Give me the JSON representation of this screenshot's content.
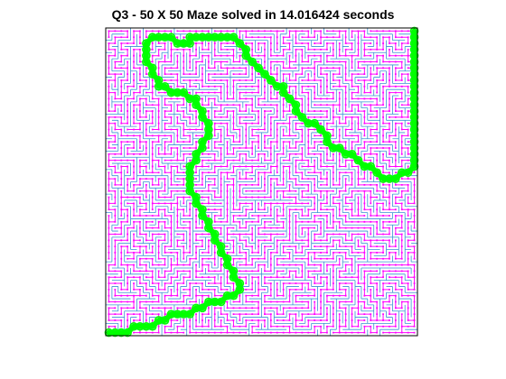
{
  "title": "Q3 - 50 X 50 Maze solved in 14.016424 seconds",
  "maze": {
    "rows": 50,
    "cols": 50,
    "wall_color": "#3b8fd4",
    "path_color": "#ff00ff",
    "node_color": "#ff00ff",
    "solution_color": "#00ff00",
    "frame_color": "#000000",
    "start_cell": [
      0,
      0
    ],
    "goal_cell": [
      49,
      49
    ]
  },
  "solution_path": [
    [
      0,
      0
    ],
    [
      1,
      0
    ],
    [
      2,
      0
    ],
    [
      3,
      0
    ],
    [
      4,
      1
    ],
    [
      5,
      1
    ],
    [
      6,
      1
    ],
    [
      7,
      1
    ],
    [
      8,
      2
    ],
    [
      9,
      2
    ],
    [
      10,
      3
    ],
    [
      11,
      3
    ],
    [
      12,
      3
    ],
    [
      13,
      3
    ],
    [
      14,
      4
    ],
    [
      15,
      4
    ],
    [
      16,
      5
    ],
    [
      17,
      5
    ],
    [
      18,
      5
    ],
    [
      19,
      6
    ],
    [
      20,
      6
    ],
    [
      21,
      7
    ],
    [
      21,
      8
    ],
    [
      20,
      9
    ],
    [
      20,
      10
    ],
    [
      19,
      11
    ],
    [
      19,
      12
    ],
    [
      18,
      13
    ],
    [
      18,
      14
    ],
    [
      17,
      15
    ],
    [
      17,
      16
    ],
    [
      16,
      17
    ],
    [
      16,
      18
    ],
    [
      15,
      19
    ],
    [
      15,
      20
    ],
    [
      14,
      21
    ],
    [
      14,
      22
    ],
    [
      13,
      23
    ],
    [
      13,
      24
    ],
    [
      13,
      25
    ],
    [
      13,
      26
    ],
    [
      13,
      27
    ],
    [
      14,
      28
    ],
    [
      14,
      29
    ],
    [
      15,
      30
    ],
    [
      15,
      31
    ],
    [
      16,
      32
    ],
    [
      16,
      33
    ],
    [
      16,
      34
    ],
    [
      15,
      35
    ],
    [
      15,
      36
    ],
    [
      14,
      37
    ],
    [
      14,
      38
    ],
    [
      13,
      38
    ],
    [
      12,
      39
    ],
    [
      11,
      39
    ],
    [
      10,
      39
    ],
    [
      9,
      40
    ],
    [
      8,
      40
    ],
    [
      8,
      41
    ],
    [
      7,
      42
    ],
    [
      7,
      43
    ],
    [
      6,
      44
    ],
    [
      6,
      45
    ],
    [
      6,
      46
    ],
    [
      6,
      47
    ],
    [
      7,
      48
    ],
    [
      8,
      48
    ],
    [
      9,
      48
    ],
    [
      10,
      48
    ],
    [
      11,
      47
    ],
    [
      12,
      47
    ],
    [
      13,
      47
    ],
    [
      13,
      48
    ],
    [
      14,
      48
    ],
    [
      15,
      48
    ],
    [
      16,
      48
    ],
    [
      17,
      48
    ],
    [
      18,
      48
    ],
    [
      19,
      48
    ],
    [
      20,
      48
    ],
    [
      21,
      47
    ],
    [
      22,
      46
    ],
    [
      22,
      45
    ],
    [
      23,
      44
    ],
    [
      24,
      43
    ],
    [
      25,
      42
    ],
    [
      26,
      41
    ],
    [
      27,
      40
    ],
    [
      28,
      40
    ],
    [
      28,
      39
    ],
    [
      29,
      38
    ],
    [
      30,
      37
    ],
    [
      30,
      36
    ],
    [
      31,
      35
    ],
    [
      32,
      34
    ],
    [
      33,
      34
    ],
    [
      34,
      33
    ],
    [
      35,
      32
    ],
    [
      35,
      31
    ],
    [
      36,
      30
    ],
    [
      37,
      30
    ],
    [
      38,
      29
    ],
    [
      39,
      29
    ],
    [
      40,
      28
    ],
    [
      41,
      27
    ],
    [
      42,
      27
    ],
    [
      43,
      26
    ],
    [
      44,
      25
    ],
    [
      45,
      25
    ],
    [
      46,
      25
    ],
    [
      47,
      26
    ],
    [
      48,
      26
    ],
    [
      49,
      27
    ],
    [
      49,
      28
    ],
    [
      49,
      29
    ],
    [
      49,
      30
    ],
    [
      49,
      31
    ],
    [
      49,
      32
    ],
    [
      49,
      33
    ],
    [
      49,
      34
    ],
    [
      49,
      35
    ],
    [
      49,
      36
    ],
    [
      49,
      37
    ],
    [
      49,
      38
    ],
    [
      49,
      39
    ],
    [
      49,
      40
    ],
    [
      49,
      41
    ],
    [
      49,
      42
    ],
    [
      49,
      43
    ],
    [
      49,
      44
    ],
    [
      49,
      45
    ],
    [
      49,
      46
    ],
    [
      49,
      47
    ],
    [
      49,
      48
    ],
    [
      49,
      49
    ]
  ]
}
